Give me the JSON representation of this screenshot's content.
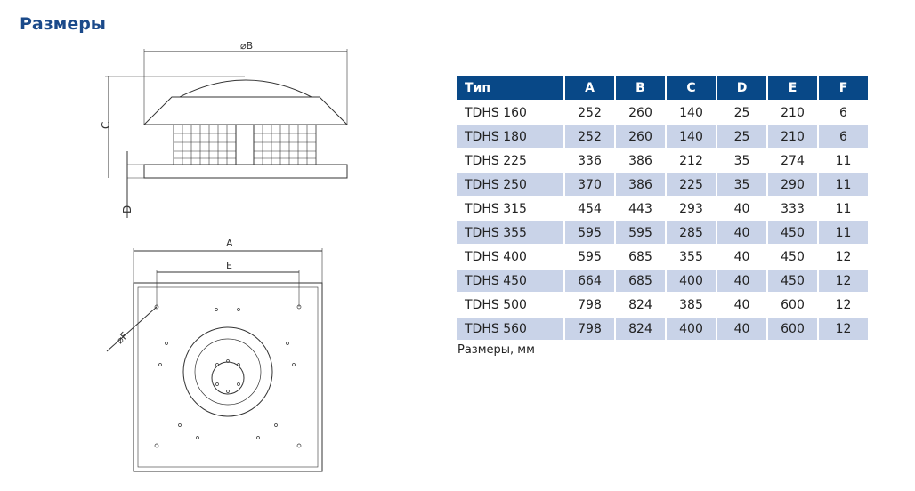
{
  "title": "Размеры",
  "table": {
    "headers": [
      "Тип",
      "A",
      "B",
      "C",
      "D",
      "E",
      "F"
    ],
    "rows": [
      [
        "TDHS 160",
        "252",
        "260",
        "140",
        "25",
        "210",
        "6"
      ],
      [
        "TDHS 180",
        "252",
        "260",
        "140",
        "25",
        "210",
        "6"
      ],
      [
        "TDHS 225",
        "336",
        "386",
        "212",
        "35",
        "274",
        "11"
      ],
      [
        "TDHS 250",
        "370",
        "386",
        "225",
        "35",
        "290",
        "11"
      ],
      [
        "TDHS 315",
        "454",
        "443",
        "293",
        "40",
        "333",
        "11"
      ],
      [
        "TDHS 355",
        "595",
        "595",
        "285",
        "40",
        "450",
        "11"
      ],
      [
        "TDHS 400",
        "595",
        "685",
        "355",
        "40",
        "450",
        "12"
      ],
      [
        "TDHS 450",
        "664",
        "685",
        "400",
        "40",
        "450",
        "12"
      ],
      [
        "TDHS 500",
        "798",
        "824",
        "385",
        "40",
        "600",
        "12"
      ],
      [
        "TDHS 560",
        "798",
        "824",
        "400",
        "40",
        "600",
        "12"
      ]
    ]
  },
  "note": "Размеры, мм",
  "drawing": {
    "label_b": "⌀B",
    "label_c": "C",
    "label_d": "D",
    "label_a": "A",
    "label_e": "E",
    "label_f": "⌀F"
  },
  "colors": {
    "header": "#084887",
    "stripe": "#c9d3e8",
    "title": "#1b4a8a"
  }
}
